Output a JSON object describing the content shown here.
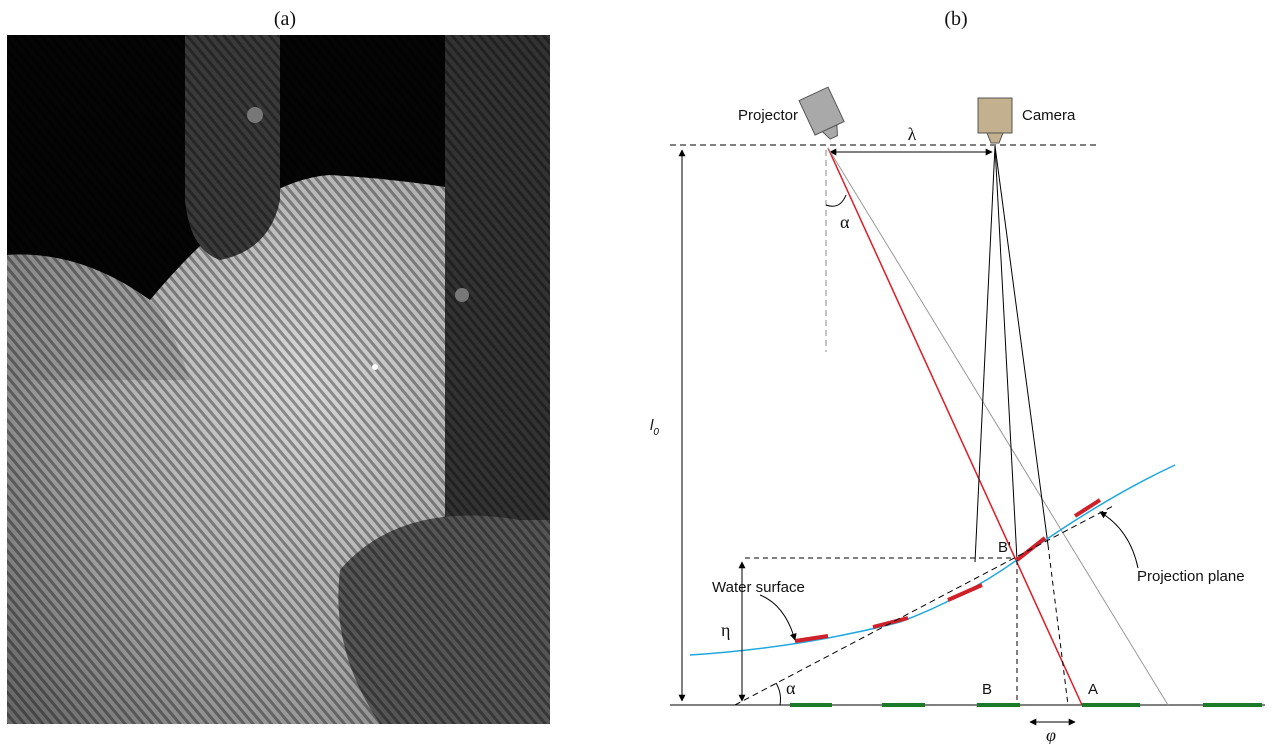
{
  "panels": [
    {
      "label": "(a)"
    },
    {
      "label": "(b)"
    }
  ],
  "diagram": {
    "projector": "Projector",
    "camera": "Camera",
    "baseline": "λ",
    "angle_top": "α",
    "angle_bottom": "α",
    "height": {
      "text": "l",
      "subscript": "0"
    },
    "elevation": "η",
    "point_b_prime": "B'",
    "point_b": "B",
    "point_a": "A",
    "phase": "φ",
    "water_surface": "Water surface",
    "projection_plane": "Projection plane"
  }
}
